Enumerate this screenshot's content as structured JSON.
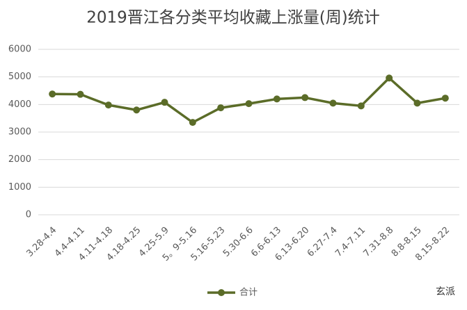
{
  "chart_data": {
    "type": "line",
    "title": "2019晋江各分类平均收藏上涨量(周)统计",
    "categories": [
      "3.28-4.4",
      "4.4-4.11",
      "4.11-4.18",
      "4.18-4.25",
      "4.25-5.9",
      "5。9-5.16",
      "5.16-5.23",
      "5.30-6.6",
      "6.6-6.13",
      "6.13-6.20",
      "6.27-7.4",
      "7.4-7.11",
      "7.31-8.8",
      "8.8-8.15",
      "8.15-8.22"
    ],
    "series": [
      {
        "name": "合计",
        "color": "#5b6c28",
        "values": [
          4380,
          4370,
          3980,
          3800,
          4080,
          3350,
          3880,
          4030,
          4200,
          4250,
          4050,
          3950,
          4960,
          4050,
          4230
        ]
      }
    ],
    "ylim": [
      0,
      6000
    ],
    "yticks": [
      0,
      1000,
      2000,
      3000,
      4000,
      5000,
      6000
    ],
    "grid": true,
    "legend": "bottom"
  },
  "watermark": "玄派"
}
